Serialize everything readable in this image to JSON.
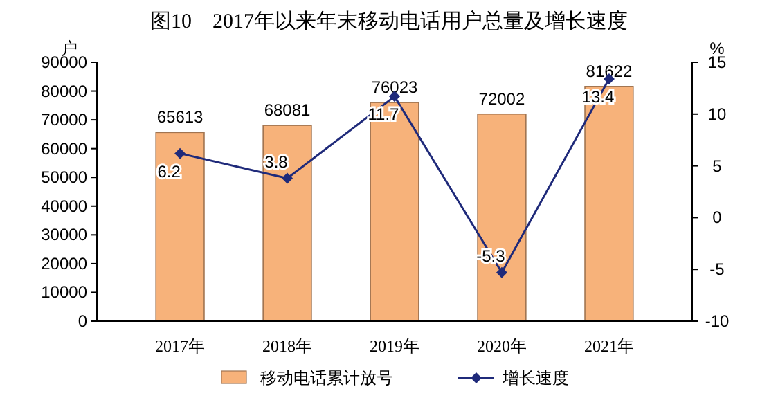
{
  "chart_data": {
    "type": "bar",
    "title": "图10　2017年以来年末移动电话用户总量及增长速度",
    "ylabel": "户",
    "y2label": "%",
    "categories": [
      "2017年",
      "2018年",
      "2019年",
      "2020年",
      "2021年"
    ],
    "series": [
      {
        "name": "移动电话累计放号",
        "color": "#f7b27a",
        "values": [
          65613,
          68081,
          76023,
          72002,
          81622
        ]
      },
      {
        "name": "增长速度",
        "type": "line",
        "axis": "y2",
        "color": "#1f2a7a",
        "values": [
          6.2,
          3.8,
          11.7,
          -5.3,
          13.4
        ]
      }
    ],
    "ylim": [
      0,
      90000
    ],
    "yticks": [
      0,
      10000,
      20000,
      30000,
      40000,
      50000,
      60000,
      70000,
      80000,
      90000
    ],
    "y2lim": [
      -10,
      15
    ],
    "y2ticks": [
      -10,
      -5,
      0,
      5,
      10,
      15
    ],
    "data_labels": true,
    "legend": "bottom",
    "marker": "diamond",
    "line_style": "solid",
    "grid": false
  }
}
